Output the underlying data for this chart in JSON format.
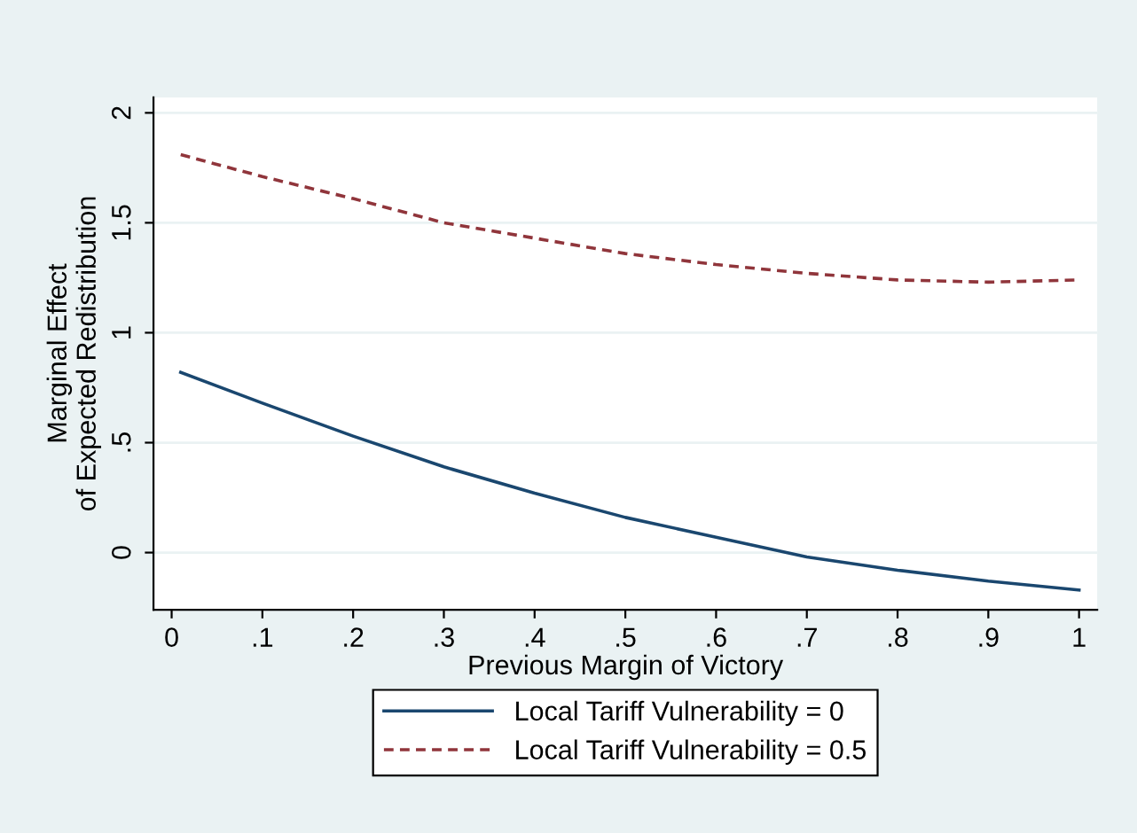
{
  "chart_data": {
    "type": "line",
    "xlabel": "Previous Margin of Victory",
    "ylabel": "Marginal Effect\nof Expected Redistribution",
    "x": [
      0.01,
      0.1,
      0.2,
      0.3,
      0.4,
      0.5,
      0.6,
      0.7,
      0.8,
      0.9,
      1.0
    ],
    "series": [
      {
        "name": "Local Tariff Vulnerability = 0",
        "color": "#1a476f",
        "line_style": "solid",
        "values": [
          0.82,
          0.68,
          0.53,
          0.39,
          0.27,
          0.16,
          0.07,
          -0.02,
          -0.08,
          -0.13,
          -0.17
        ]
      },
      {
        "name": "Local Tariff Vulnerability = 0.5",
        "color": "#90353b",
        "line_style": "dashed",
        "values": [
          1.81,
          1.71,
          1.61,
          1.5,
          1.43,
          1.36,
          1.31,
          1.27,
          1.24,
          1.23,
          1.24
        ]
      }
    ],
    "xlim": [
      -0.02,
      1.02
    ],
    "ylim": [
      -0.26,
      2.07
    ],
    "xticks": [
      0,
      {
        "value": 0.1,
        "label": ".1"
      },
      {
        "value": 0.2,
        "label": ".2"
      },
      {
        "value": 0.3,
        "label": ".3"
      },
      {
        "value": 0.4,
        "label": ".4"
      },
      {
        "value": 0.5,
        "label": ".5"
      },
      {
        "value": 0.6,
        "label": ".6"
      },
      {
        "value": 0.7,
        "label": ".7"
      },
      {
        "value": 0.8,
        "label": ".8"
      },
      {
        "value": 0.9,
        "label": ".9"
      },
      1
    ],
    "yticks": [
      0,
      {
        "value": 0.5,
        "label": ".5"
      },
      1,
      1.5,
      2
    ],
    "grid": "y",
    "legend": "bottom",
    "marker": "none"
  }
}
